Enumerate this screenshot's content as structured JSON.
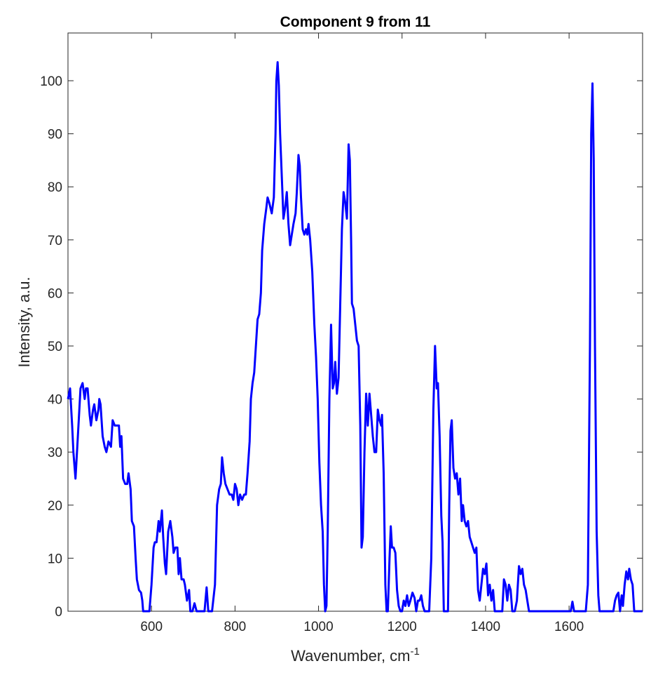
{
  "chart_data": {
    "type": "line",
    "title": "Component 9 from 11",
    "xlabel": "Wavenumber, cm",
    "xlabel_superscript": "-1",
    "ylabel": "Intensity, a.u.",
    "xlim": [
      400,
      1776
    ],
    "ylim": [
      0,
      109
    ],
    "xticks": [
      600,
      800,
      1000,
      1200,
      1400,
      1600
    ],
    "yticks": [
      0,
      10,
      20,
      30,
      40,
      50,
      60,
      70,
      80,
      90,
      100
    ],
    "grid": false,
    "series": [
      {
        "color": "#0000ff",
        "x": [
          400,
          405,
          410,
          413,
          418,
          423,
          430,
          435,
          440,
          443,
          447,
          452,
          455,
          460,
          463,
          468,
          473,
          475,
          478,
          483,
          488,
          492,
          497,
          503,
          507,
          512,
          517,
          522,
          525,
          528,
          532,
          537,
          542,
          545,
          550,
          553,
          558,
          562,
          565,
          570,
          575,
          578,
          580,
          590,
          595,
          600,
          605,
          608,
          612,
          617,
          620,
          625,
          628,
          632,
          635,
          640,
          645,
          650,
          653,
          657,
          662,
          665,
          668,
          672,
          677,
          680,
          685,
          690,
          693,
          698,
          703,
          708,
          720,
          727,
          732,
          736,
          745,
          752,
          757,
          762,
          766,
          769,
          773,
          777,
          782,
          787,
          792,
          796,
          800,
          804,
          808,
          812,
          817,
          822,
          826,
          830,
          835,
          838,
          842,
          846,
          850,
          854,
          858,
          862,
          865,
          870,
          875,
          878,
          882,
          888,
          893,
          897,
          899,
          902,
          905,
          908,
          913,
          916,
          920,
          924,
          928,
          932,
          936,
          940,
          945,
          948,
          952,
          955,
          958,
          962,
          966,
          970,
          973,
          976,
          980,
          985,
          990,
          994,
          998,
          1002,
          1006,
          1010,
          1013,
          1016,
          1019,
          1022,
          1026,
          1030,
          1034,
          1037,
          1040,
          1044,
          1048,
          1052,
          1056,
          1060,
          1064,
          1068,
          1072,
          1075,
          1078,
          1080,
          1084,
          1088,
          1092,
          1096,
          1100,
          1103,
          1106,
          1110,
          1114,
          1118,
          1122,
          1126,
          1130,
          1134,
          1138,
          1142,
          1146,
          1150,
          1152,
          1156,
          1160,
          1163,
          1166,
          1170,
          1173,
          1176,
          1180,
          1184,
          1188,
          1192,
          1196,
          1200,
          1204,
          1208,
          1212,
          1216,
          1220,
          1225,
          1230,
          1234,
          1238,
          1242,
          1246,
          1250,
          1254,
          1260,
          1265,
          1270,
          1275,
          1279,
          1283,
          1286,
          1290,
          1294,
          1297,
          1300,
          1305,
          1310,
          1313,
          1316,
          1319,
          1323,
          1327,
          1331,
          1335,
          1339,
          1343,
          1346,
          1350,
          1354,
          1358,
          1362,
          1366,
          1370,
          1374,
          1378,
          1382,
          1386,
          1390,
          1394,
          1398,
          1402,
          1406,
          1410,
          1414,
          1418,
          1422,
          1430,
          1440,
          1444,
          1448,
          1452,
          1456,
          1460,
          1464,
          1470,
          1475,
          1480,
          1484,
          1488,
          1492,
          1496,
          1500,
          1504,
          1520,
          1600,
          1604,
          1608,
          1612,
          1620,
          1640,
          1645,
          1650,
          1653,
          1656,
          1659,
          1662,
          1666,
          1670,
          1673,
          1700,
          1706,
          1710,
          1714,
          1718,
          1722,
          1726,
          1729,
          1733,
          1737,
          1741,
          1744,
          1748,
          1752,
          1756,
          1776
        ],
        "values": [
          40,
          42,
          35,
          30,
          25,
          32,
          42,
          43,
          40,
          42,
          42,
          37,
          35,
          38,
          39,
          36,
          38,
          40,
          39,
          33,
          31,
          30,
          32,
          31,
          36,
          35,
          35,
          35,
          31,
          33,
          25,
          24,
          24,
          26,
          23,
          17,
          16,
          10,
          6,
          4,
          3.5,
          2,
          0,
          0,
          0,
          5,
          12,
          13,
          13,
          17,
          15,
          19,
          14,
          9,
          7,
          15,
          17,
          14,
          11,
          12,
          12,
          7,
          10,
          6,
          6,
          5,
          2,
          4,
          0,
          0,
          1.5,
          0,
          0,
          0,
          4.5,
          0,
          0,
          5,
          20,
          23,
          24,
          29,
          26,
          24,
          23,
          22,
          22,
          21,
          24,
          23,
          20,
          22,
          21,
          22,
          22,
          26,
          32,
          40,
          43,
          45,
          50,
          55,
          56,
          60,
          68,
          73,
          76,
          78,
          77,
          75,
          78,
          90,
          100,
          103.5,
          99,
          90,
          80,
          74,
          76,
          79,
          73,
          69,
          71,
          73,
          75,
          79,
          86,
          84,
          78,
          72,
          71,
          72,
          71,
          73,
          70,
          64,
          54,
          48,
          40,
          28,
          20,
          15,
          5,
          0,
          1,
          15,
          40,
          54,
          42,
          43,
          47,
          41,
          44,
          58,
          72,
          79,
          77,
          74,
          88,
          85,
          70,
          58,
          57,
          54,
          51,
          50,
          35,
          12,
          14,
          30,
          41,
          35,
          41,
          37,
          33,
          30,
          30,
          38,
          36,
          35,
          37,
          26,
          5,
          0,
          0,
          10,
          16,
          12,
          12,
          11,
          4,
          1,
          0,
          0,
          2,
          1,
          3,
          1,
          2,
          3.5,
          2.5,
          0,
          2,
          2,
          3,
          1,
          0,
          0,
          0,
          10,
          38,
          50,
          42,
          43,
          33,
          18,
          13,
          0,
          0,
          0,
          20,
          34,
          36,
          27,
          25,
          26,
          22,
          25,
          17,
          20,
          17,
          16,
          17,
          14,
          13,
          12,
          11,
          12,
          4,
          2,
          5,
          8,
          7,
          9,
          3,
          5,
          2,
          4,
          0,
          0,
          0,
          6,
          5,
          2,
          5,
          4,
          0,
          0,
          2,
          8.5,
          7,
          8,
          5,
          4,
          2,
          0,
          0,
          0,
          0,
          1.8,
          0,
          0,
          0,
          5,
          50,
          90,
          99.5,
          85,
          50,
          15,
          3,
          0,
          0,
          0,
          2,
          3,
          3.5,
          0,
          3,
          1,
          5,
          7.5,
          6,
          8,
          6,
          5,
          0,
          0
        ]
      }
    ]
  }
}
